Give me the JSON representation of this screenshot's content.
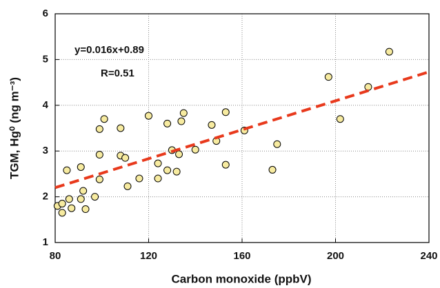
{
  "chart_data": {
    "type": "scatter",
    "x_label": "Carbon monoxide (ppbV)",
    "y_label": "TGM, Hg⁰ (ng m⁻³)",
    "annotations": [
      "y=0.016x+0.89",
      "R=0.51"
    ],
    "xlim": [
      80,
      240
    ],
    "xticks": [
      80,
      120,
      160,
      200,
      240
    ],
    "ylim": [
      1,
      6
    ],
    "yticks": [
      1,
      2,
      3,
      4,
      5,
      6
    ],
    "grid": true,
    "series": [
      {
        "color": "#f7eba0",
        "x": [
          81,
          83,
          83,
          86,
          87,
          85,
          91,
          91,
          92,
          93,
          97,
          99,
          99,
          99,
          101,
          108,
          108,
          110,
          111,
          116,
          120,
          124,
          124,
          128,
          128,
          130,
          132,
          133,
          134,
          135,
          140,
          147,
          149,
          153,
          153,
          161,
          173,
          175,
          197,
          202,
          214,
          223
        ],
        "values": [
          1.8,
          1.85,
          1.65,
          1.95,
          1.75,
          2.58,
          2.65,
          1.95,
          2.13,
          1.73,
          2.0,
          2.38,
          2.92,
          3.48,
          3.7,
          2.9,
          3.5,
          2.85,
          2.23,
          2.4,
          3.77,
          2.4,
          2.73,
          2.58,
          3.6,
          3.02,
          2.55,
          2.93,
          3.65,
          3.83,
          3.03,
          3.57,
          3.22,
          3.85,
          2.7,
          3.45,
          2.59,
          3.15,
          4.62,
          3.7,
          4.4,
          5.17
        ]
      },
      {
        "type": "line",
        "color": "#e8391c",
        "x": [
          80,
          240
        ],
        "values": [
          2.2,
          4.73
        ]
      }
    ]
  }
}
